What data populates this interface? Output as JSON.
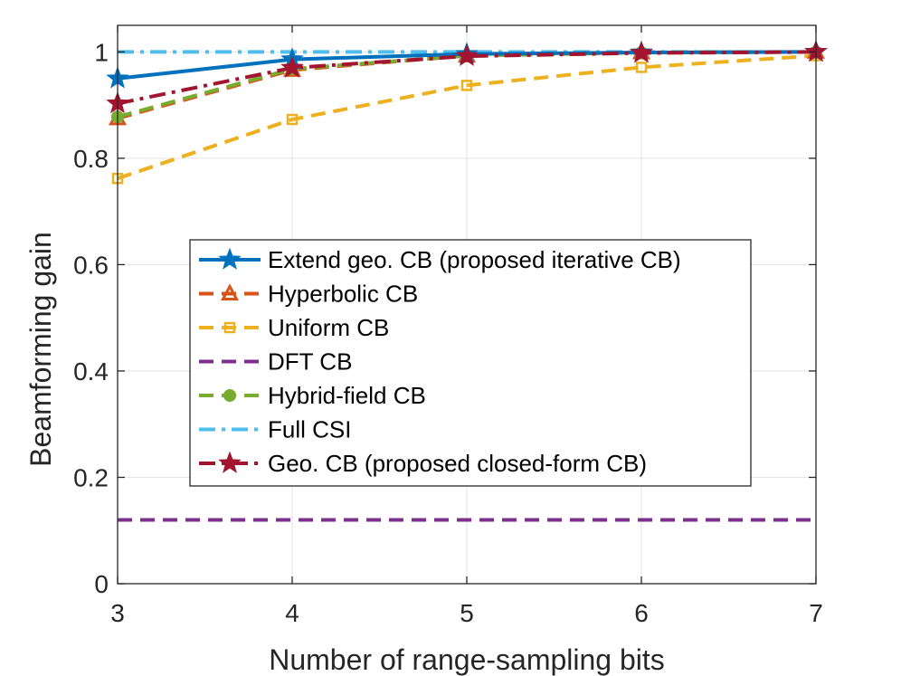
{
  "chart_data": {
    "type": "line",
    "title": "",
    "xlabel": "Number of range-sampling bits",
    "ylabel": "Beamforming gain",
    "x": [
      3,
      4,
      5,
      6,
      7
    ],
    "xlim": [
      3,
      7
    ],
    "ylim": [
      0,
      1.05
    ],
    "xticks": [
      "3",
      "4",
      "5",
      "6",
      "7"
    ],
    "yticks": [
      "0",
      "0.2",
      "0.4",
      "0.6",
      "0.8",
      "1"
    ],
    "grid": true,
    "legend_position": "center",
    "series": [
      {
        "name": "Extend geo. CB (proposed iterative CB)",
        "values": [
          0.95,
          0.986,
          0.996,
          0.999,
          1.0
        ],
        "color": "#0072BD",
        "dash": "solid",
        "marker": "star"
      },
      {
        "name": "Hyperbolic CB",
        "values": [
          0.875,
          0.966,
          0.993,
          0.999,
          1.0
        ],
        "color": "#D95319",
        "dash": "dashed",
        "marker": "triangle"
      },
      {
        "name": "Uniform CB",
        "values": [
          0.762,
          0.873,
          0.937,
          0.971,
          0.993
        ],
        "color": "#EDB120",
        "dash": "dashed",
        "marker": "square"
      },
      {
        "name": "DFT CB",
        "values": [
          0.12,
          0.12,
          0.12,
          0.12,
          0.12
        ],
        "color": "#7E2F8E",
        "dash": "dashed",
        "marker": "none"
      },
      {
        "name": "Hybrid-field CB",
        "values": [
          0.878,
          0.968,
          0.993,
          0.999,
          1.0
        ],
        "color": "#77AC30",
        "dash": "dashed",
        "marker": "circle"
      },
      {
        "name": "Full CSI",
        "values": [
          1.0,
          1.0,
          1.0,
          1.0,
          1.0
        ],
        "color": "#4DBEEE",
        "dash": "dashdot",
        "marker": "none"
      },
      {
        "name": "Geo. CB (proposed closed-form CB)",
        "values": [
          0.903,
          0.97,
          0.992,
          0.998,
          1.0
        ],
        "color": "#A2142F",
        "dash": "dashdot",
        "marker": "star"
      }
    ]
  }
}
